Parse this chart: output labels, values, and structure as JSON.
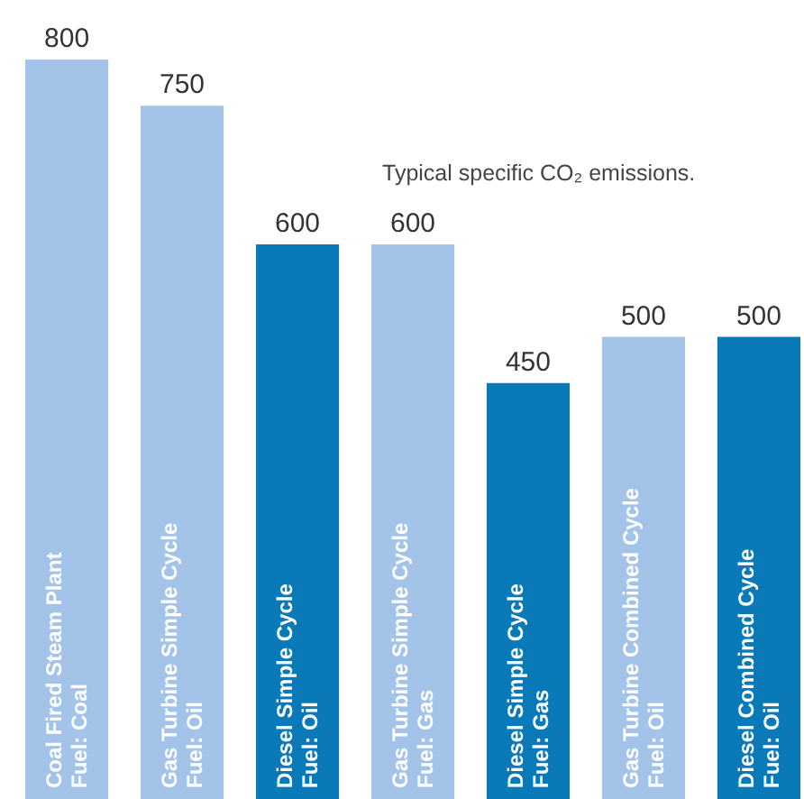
{
  "chart_data": {
    "type": "bar",
    "categories": [
      "Coal Fired Steam Plant\nFuel: Coal",
      "Gas Turbine Simple Cycle\nFuel: Oil",
      "Diesel Simple Cycle\nFuel: Oil",
      "Gas Turbine Simple Cycle\nFuel: Gas",
      "Diesel Simple Cycle\nFuel: Gas",
      "Gas Turbine Combined Cycle\nFuel: Oil",
      "Diesel Combined Cycle\nFuel: Oil"
    ],
    "values": [
      800,
      750,
      600,
      600,
      450,
      500,
      500
    ],
    "colors": [
      "#a3c4e8",
      "#a3c4e8",
      "#0a79b8",
      "#a3c4e8",
      "#0a79b8",
      "#a3c4e8",
      "#0a79b8"
    ],
    "data_labels": true,
    "annotations": [
      "Typical specific CO₂ emissions."
    ]
  }
}
